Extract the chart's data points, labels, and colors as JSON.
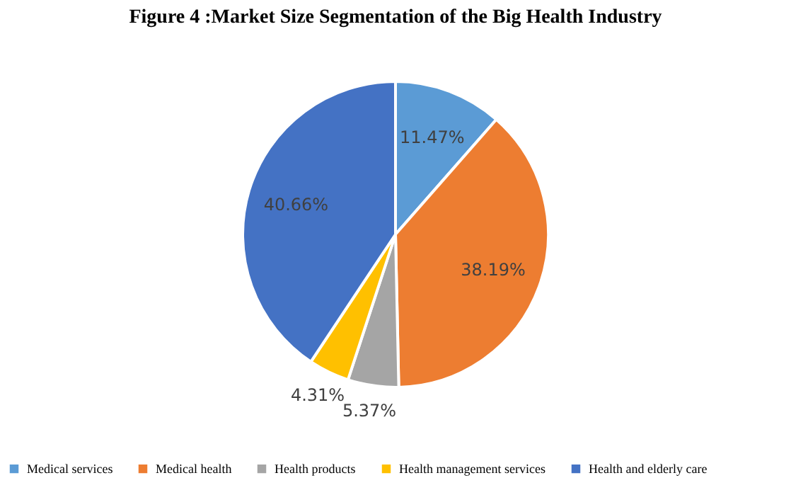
{
  "chart_data": {
    "type": "pie",
    "title": "Figure 4 :Market Size Segmentation of the Big Health Industry",
    "categories": [
      "Medical services",
      "Medical health",
      "Health products",
      "Health management services",
      "Health and elderly care"
    ],
    "values": [
      11.47,
      38.19,
      5.37,
      4.31,
      40.66
    ],
    "value_labels": [
      "11.47%",
      "38.19%",
      "5.37%",
      "4.31%",
      "40.66%"
    ],
    "colors": [
      "#5b9bd5",
      "#ed7d31",
      "#a5a5a5",
      "#ffc000",
      "#4472c4"
    ],
    "legend": "bottom"
  }
}
